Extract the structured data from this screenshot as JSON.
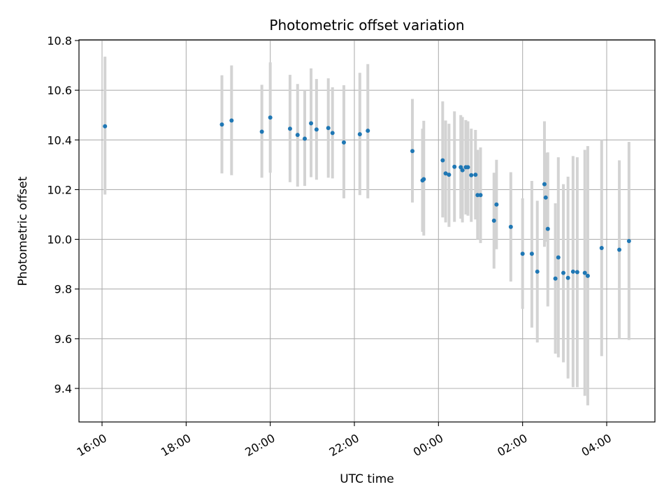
{
  "chart_data": {
    "type": "scatter",
    "title": "Photometric offset variation",
    "xlabel": "UTC time",
    "ylabel": "Photometric offset",
    "x_unit": "UTC time (hours, relative to the day starting at 00:00 tick)",
    "xlim": [
      -8.55,
      5.15
    ],
    "ylim": [
      9.26,
      10.81
    ],
    "x_ticks": [
      {
        "value": -8,
        "label": "16:00"
      },
      {
        "value": -6,
        "label": "18:00"
      },
      {
        "value": -4,
        "label": "20:00"
      },
      {
        "value": -2,
        "label": "22:00"
      },
      {
        "value": 0,
        "label": "00:00"
      },
      {
        "value": 2,
        "label": "02:00"
      },
      {
        "value": 4,
        "label": "04:00"
      }
    ],
    "y_ticks": [
      {
        "value": 9.4,
        "label": "9.4"
      },
      {
        "value": 9.6,
        "label": "9.6"
      },
      {
        "value": 9.8,
        "label": "9.8"
      },
      {
        "value": 10.0,
        "label": "10.0"
      },
      {
        "value": 10.2,
        "label": "10.2"
      },
      {
        "value": 10.4,
        "label": "10.4"
      },
      {
        "value": 10.6,
        "label": "10.6"
      },
      {
        "value": 10.8,
        "label": "10.8"
      }
    ],
    "grid": true,
    "colors": {
      "point": "#1f77b4",
      "errorbar": "#d3d3d3",
      "grid": "#b0b0b0"
    },
    "points": [
      {
        "x": -7.93,
        "y": 10.455,
        "lo": 10.18,
        "hi": 10.735
      },
      {
        "x": -5.15,
        "y": 10.462,
        "lo": 10.265,
        "hi": 10.66
      },
      {
        "x": -4.92,
        "y": 10.478,
        "lo": 10.258,
        "hi": 10.7
      },
      {
        "x": -4.2,
        "y": 10.433,
        "lo": 10.248,
        "hi": 10.622
      },
      {
        "x": -4.0,
        "y": 10.49,
        "lo": 10.268,
        "hi": 10.712
      },
      {
        "x": -3.53,
        "y": 10.445,
        "lo": 10.23,
        "hi": 10.662
      },
      {
        "x": -3.35,
        "y": 10.42,
        "lo": 10.212,
        "hi": 10.625
      },
      {
        "x": -3.18,
        "y": 10.405,
        "lo": 10.215,
        "hi": 10.6
      },
      {
        "x": -3.03,
        "y": 10.467,
        "lo": 10.25,
        "hi": 10.688
      },
      {
        "x": -2.9,
        "y": 10.442,
        "lo": 10.24,
        "hi": 10.645
      },
      {
        "x": -2.62,
        "y": 10.448,
        "lo": 10.248,
        "hi": 10.648
      },
      {
        "x": -2.52,
        "y": 10.428,
        "lo": 10.245,
        "hi": 10.612
      },
      {
        "x": -2.25,
        "y": 10.39,
        "lo": 10.165,
        "hi": 10.62
      },
      {
        "x": -1.87,
        "y": 10.423,
        "lo": 10.178,
        "hi": 10.67
      },
      {
        "x": -1.68,
        "y": 10.437,
        "lo": 10.165,
        "hi": 10.705
      },
      {
        "x": -0.62,
        "y": 10.355,
        "lo": 10.148,
        "hi": 10.565
      },
      {
        "x": -0.38,
        "y": 10.237,
        "lo": 10.03,
        "hi": 10.445
      },
      {
        "x": -0.35,
        "y": 10.242,
        "lo": 10.015,
        "hi": 10.477
      },
      {
        "x": 0.1,
        "y": 10.318,
        "lo": 10.088,
        "hi": 10.555
      },
      {
        "x": 0.17,
        "y": 10.265,
        "lo": 10.068,
        "hi": 10.478
      },
      {
        "x": 0.25,
        "y": 10.26,
        "lo": 10.05,
        "hi": 10.465
      },
      {
        "x": 0.38,
        "y": 10.292,
        "lo": 10.07,
        "hi": 10.515
      },
      {
        "x": 0.53,
        "y": 10.29,
        "lo": 10.083,
        "hi": 10.5
      },
      {
        "x": 0.57,
        "y": 10.278,
        "lo": 10.068,
        "hi": 10.492
      },
      {
        "x": 0.65,
        "y": 10.29,
        "lo": 10.1,
        "hi": 10.48
      },
      {
        "x": 0.7,
        "y": 10.29,
        "lo": 10.095,
        "hi": 10.475
      },
      {
        "x": 0.78,
        "y": 10.258,
        "lo": 10.07,
        "hi": 10.445
      },
      {
        "x": 0.88,
        "y": 10.26,
        "lo": 10.08,
        "hi": 10.44
      },
      {
        "x": 0.93,
        "y": 10.178,
        "lo": 10.0,
        "hi": 10.36
      },
      {
        "x": 1.0,
        "y": 10.178,
        "lo": 9.985,
        "hi": 10.37
      },
      {
        "x": 1.32,
        "y": 10.075,
        "lo": 9.882,
        "hi": 10.268
      },
      {
        "x": 1.38,
        "y": 10.14,
        "lo": 9.96,
        "hi": 10.32
      },
      {
        "x": 1.72,
        "y": 10.05,
        "lo": 9.83,
        "hi": 10.27
      },
      {
        "x": 2.0,
        "y": 9.942,
        "lo": 9.72,
        "hi": 10.165
      },
      {
        "x": 2.22,
        "y": 9.942,
        "lo": 9.645,
        "hi": 10.235
      },
      {
        "x": 2.35,
        "y": 9.87,
        "lo": 9.585,
        "hi": 10.155
      },
      {
        "x": 2.52,
        "y": 10.222,
        "lo": 9.97,
        "hi": 10.475
      },
      {
        "x": 2.55,
        "y": 10.168,
        "lo": 9.99,
        "hi": 10.348
      },
      {
        "x": 2.6,
        "y": 10.042,
        "lo": 9.73,
        "hi": 10.35
      },
      {
        "x": 2.78,
        "y": 9.842,
        "lo": 9.54,
        "hi": 10.145
      },
      {
        "x": 2.85,
        "y": 9.927,
        "lo": 9.525,
        "hi": 10.33
      },
      {
        "x": 2.97,
        "y": 9.865,
        "lo": 9.505,
        "hi": 10.222
      },
      {
        "x": 3.08,
        "y": 9.845,
        "lo": 9.44,
        "hi": 10.252
      },
      {
        "x": 3.2,
        "y": 9.87,
        "lo": 9.405,
        "hi": 10.335
      },
      {
        "x": 3.3,
        "y": 9.868,
        "lo": 9.405,
        "hi": 10.33
      },
      {
        "x": 3.48,
        "y": 9.865,
        "lo": 9.37,
        "hi": 10.36
      },
      {
        "x": 3.55,
        "y": 9.853,
        "lo": 9.332,
        "hi": 10.375
      },
      {
        "x": 3.88,
        "y": 9.965,
        "lo": 9.53,
        "hi": 10.4
      },
      {
        "x": 4.3,
        "y": 9.958,
        "lo": 9.6,
        "hi": 10.318
      },
      {
        "x": 4.53,
        "y": 9.993,
        "lo": 9.595,
        "hi": 10.392
      }
    ]
  }
}
